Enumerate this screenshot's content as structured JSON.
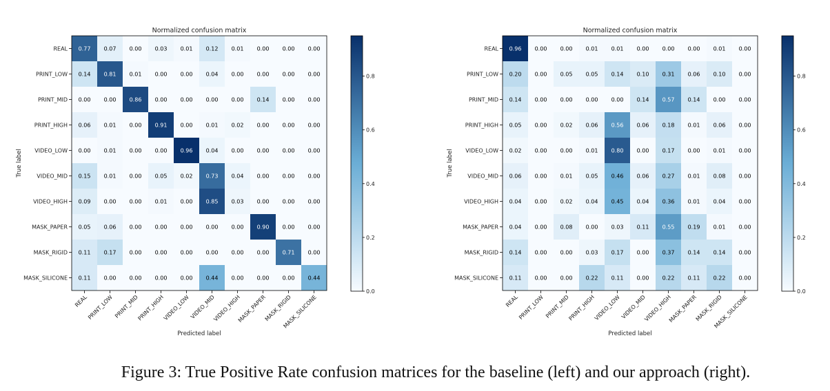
{
  "caption": "Figure 3: True Positive Rate confusion matrices for the baseline (left) and our approach (right).",
  "colors": {
    "low": "#f7fbff",
    "high": "#08306b",
    "border": "#000000"
  },
  "chart_data": [
    {
      "type": "heatmap",
      "title": "Normalized confusion matrix",
      "xlabel": "Predicted label",
      "ylabel": "True label",
      "categories": [
        "REAL",
        "PRINT_LOW",
        "PRINT_MID",
        "PRINT_HIGH",
        "VIDEO_LOW",
        "VIDEO_MID",
        "VIDEO_HIGH",
        "MASK_PAPER",
        "MASK_RIGID",
        "MASK_SILICONE"
      ],
      "vmax": 0.96,
      "colorbar_ticks": [
        "0.0",
        "0.2",
        "0.4",
        "0.6",
        "0.8"
      ],
      "matrix": [
        [
          "0.77",
          "0.07",
          "0.00",
          "0.03",
          "0.01",
          "0.12",
          "0.01",
          "0.00",
          "0.00",
          "0.00"
        ],
        [
          "0.14",
          "0.81",
          "0.01",
          "0.00",
          "0.00",
          "0.04",
          "0.00",
          "0.00",
          "0.00",
          "0.00"
        ],
        [
          "0.00",
          "0.00",
          "0.86",
          "0.00",
          "0.00",
          "0.00",
          "0.00",
          "0.14",
          "0.00",
          "0.00"
        ],
        [
          "0.06",
          "0.01",
          "0.00",
          "0.91",
          "0.00",
          "0.01",
          "0.02",
          "0.00",
          "0.00",
          "0.00"
        ],
        [
          "0.00",
          "0.01",
          "0.00",
          "0.00",
          "0.96",
          "0.04",
          "0.00",
          "0.00",
          "0.00",
          "0.00"
        ],
        [
          "0.15",
          "0.01",
          "0.00",
          "0.05",
          "0.02",
          "0.73",
          "0.04",
          "0.00",
          "0.00",
          "0.00"
        ],
        [
          "0.09",
          "0.00",
          "0.00",
          "0.01",
          "0.00",
          "0.85",
          "0.03",
          "0.00",
          "0.00",
          "0.00"
        ],
        [
          "0.05",
          "0.06",
          "0.00",
          "0.00",
          "0.00",
          "0.00",
          "0.00",
          "0.90",
          "0.00",
          "0.00"
        ],
        [
          "0.11",
          "0.17",
          "0.00",
          "0.00",
          "0.00",
          "0.00",
          "0.00",
          "0.00",
          "0.71",
          "0.00"
        ],
        [
          "0.11",
          "0.00",
          "0.00",
          "0.00",
          "0.00",
          "0.44",
          "0.00",
          "0.00",
          "0.00",
          "0.44"
        ]
      ]
    },
    {
      "type": "heatmap",
      "title": "Normalized confusion matrix",
      "xlabel": "Predicted label",
      "ylabel": "True label",
      "categories": [
        "REAL",
        "PRINT_LOW",
        "PRINT_MID",
        "PRINT_HIGH",
        "VIDEO_LOW",
        "VIDEO_MID",
        "VIDEO_HIGH",
        "MASK_PAPER",
        "MASK_RIGID",
        "MASK_SILICONE"
      ],
      "vmax": 0.96,
      "colorbar_ticks": [
        "0.0",
        "0.2",
        "0.4",
        "0.6",
        "0.8"
      ],
      "matrix": [
        [
          "0.96",
          "0.00",
          "0.00",
          "0.01",
          "0.01",
          "0.00",
          "0.00",
          "0.00",
          "0.01",
          "0.00"
        ],
        [
          "0.20",
          "0.00",
          "0.05",
          "0.05",
          "0.14",
          "0.10",
          "0.31",
          "0.06",
          "0.10",
          "0.00"
        ],
        [
          "0.14",
          "0.00",
          "0.00",
          "0.00",
          "0.00",
          "0.14",
          "0.57",
          "0.14",
          "0.00",
          "0.00"
        ],
        [
          "0.05",
          "0.00",
          "0.02",
          "0.06",
          "0.56",
          "0.06",
          "0.18",
          "0.01",
          "0.06",
          "0.00"
        ],
        [
          "0.02",
          "0.00",
          "0.00",
          "0.01",
          "0.80",
          "0.00",
          "0.17",
          "0.00",
          "0.01",
          "0.00"
        ],
        [
          "0.06",
          "0.00",
          "0.01",
          "0.05",
          "0.46",
          "0.06",
          "0.27",
          "0.01",
          "0.08",
          "0.00"
        ],
        [
          "0.04",
          "0.00",
          "0.02",
          "0.04",
          "0.45",
          "0.04",
          "0.36",
          "0.01",
          "0.04",
          "0.00"
        ],
        [
          "0.04",
          "0.00",
          "0.08",
          "0.00",
          "0.03",
          "0.11",
          "0.55",
          "0.19",
          "0.01",
          "0.00"
        ],
        [
          "0.14",
          "0.00",
          "0.00",
          "0.03",
          "0.17",
          "0.00",
          "0.37",
          "0.14",
          "0.14",
          "0.00"
        ],
        [
          "0.11",
          "0.00",
          "0.00",
          "0.22",
          "0.11",
          "0.00",
          "0.22",
          "0.11",
          "0.22",
          "0.00"
        ]
      ]
    }
  ]
}
